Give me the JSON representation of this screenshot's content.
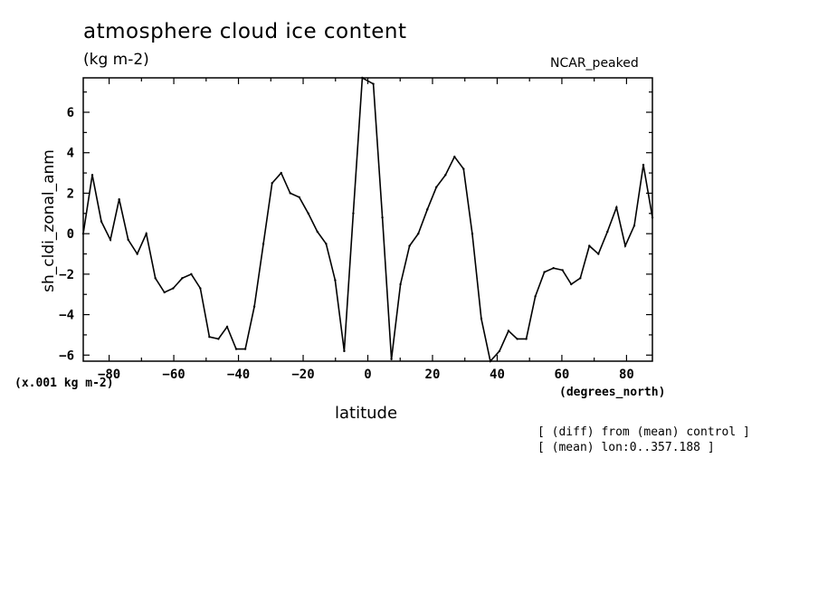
{
  "chart_data": {
    "type": "line",
    "title": "atmosphere cloud ice content",
    "units_label": "(kg m-2)",
    "model_label": "NCAR_peaked",
    "xlabel": "latitude",
    "x_units_label": "(degrees_north)",
    "ylabel": "sh_cldi_zonal_anm",
    "y_scale_label": "(x.001 kg m-2)",
    "xlim": [
      -88,
      88
    ],
    "ylim": [
      -6.3,
      7.7
    ],
    "xticks": [
      -80,
      -60,
      -40,
      -20,
      0,
      20,
      40,
      60,
      80
    ],
    "yticks": [
      -6,
      -4,
      -2,
      0,
      2,
      4,
      6
    ],
    "grid": false,
    "series": [
      {
        "x": [
          -88,
          -85.2,
          -82.4,
          -79.6,
          -76.9,
          -74.1,
          -71.3,
          -68.5,
          -65.7,
          -62.9,
          -60.2,
          -57.4,
          -54.6,
          -51.8,
          -49.0,
          -46.2,
          -43.5,
          -40.7,
          -37.9,
          -35.1,
          -32.3,
          -29.6,
          -26.8,
          -24.0,
          -21.2,
          -18.4,
          -15.6,
          -12.9,
          -10.1,
          -7.3,
          -4.5,
          -1.7,
          1.7,
          4.5,
          7.3,
          10.1,
          12.9,
          15.6,
          18.4,
          21.2,
          24.0,
          26.8,
          29.6,
          32.3,
          35.1,
          37.9,
          40.7,
          43.5,
          46.2,
          49.0,
          51.8,
          54.6,
          57.4,
          60.2,
          62.9,
          65.7,
          68.5,
          71.3,
          74.1,
          76.9,
          79.6,
          82.4,
          85.2,
          88
        ],
        "y": [
          0.0,
          2.9,
          0.6,
          -0.3,
          1.7,
          -0.3,
          -1.0,
          0.0,
          -2.2,
          -2.9,
          -2.7,
          -2.2,
          -2.0,
          -2.7,
          -5.1,
          -5.2,
          -4.6,
          -5.7,
          -5.7,
          -3.6,
          -0.5,
          2.5,
          3.0,
          2.0,
          1.8,
          1.0,
          0.1,
          -0.5,
          -2.3,
          -5.8,
          1.0,
          7.7,
          7.4,
          0.8,
          -6.2,
          -2.5,
          -0.6,
          0.0,
          1.2,
          2.3,
          2.9,
          3.8,
          3.2,
          0.0,
          -4.2,
          -6.3,
          -5.8,
          -4.8,
          -5.2,
          -5.2,
          -3.1,
          -1.9,
          -1.7,
          -1.8,
          -2.5,
          -2.2,
          -0.6,
          -1.0,
          0.1,
          1.3,
          -0.6,
          0.4,
          3.4,
          0.8
        ]
      }
    ],
    "notes": [
      "[ (diff) from (mean) control ]",
      "[ (mean) lon:0..357.188 ]"
    ]
  }
}
